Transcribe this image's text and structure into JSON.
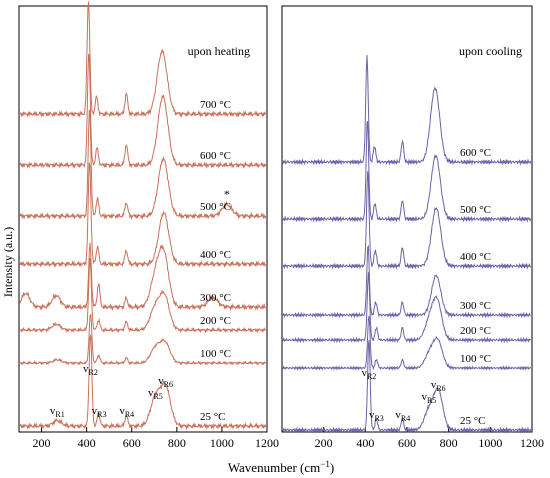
{
  "figure": {
    "ylabel": "Intensity (a.u.)",
    "xlabel": "Wavenumber (cm",
    "xlabel_sup": "−1",
    "xlabel_end": ")"
  },
  "chart_data": [
    {
      "type": "line",
      "title": "upon heating",
      "color": "#c9705a",
      "xlim": [
        100,
        1200
      ],
      "xticks": [
        200,
        400,
        600,
        800,
        1000,
        1200
      ],
      "grid": false,
      "y_scale": "arbitrary, spectra vertically offset",
      "series": [
        {
          "name": "25 °C",
          "peaks": [
            [
              270,
              0.05
            ],
            [
              417,
              0.85
            ],
            [
              453,
              0.12
            ],
            [
              576,
              0.1
            ],
            [
              705,
              0.25
            ],
            [
              750,
              0.35
            ]
          ]
        },
        {
          "name": "100 °C",
          "peaks": [
            [
              270,
              0.05
            ],
            [
              417,
              0.75
            ],
            [
              453,
              0.12
            ],
            [
              576,
              0.08
            ],
            [
              705,
              0.22
            ],
            [
              748,
              0.3
            ]
          ]
        },
        {
          "name": "200 °C",
          "peaks": [
            [
              265,
              0.07
            ],
            [
              415,
              0.85
            ],
            [
              453,
              0.12
            ],
            [
              576,
              0.1
            ],
            [
              703,
              0.25
            ],
            [
              745,
              0.4
            ]
          ]
        },
        {
          "name": "300 °C",
          "peaks": [
            [
              130,
              0.12
            ],
            [
              265,
              0.1
            ],
            [
              415,
              0.55
            ],
            [
              453,
              0.2
            ],
            [
              576,
              0.08
            ],
            [
              705,
              0.25
            ],
            [
              742,
              0.45
            ],
            [
              960,
              0.08
            ]
          ]
        },
        {
          "name": "400 °C",
          "peaks": [
            [
              413,
              0.9
            ],
            [
              448,
              0.15
            ],
            [
              576,
              0.12
            ],
            [
              742,
              0.45
            ]
          ]
        },
        {
          "name": "500 °C",
          "peaks": [
            [
              413,
              0.95
            ],
            [
              448,
              0.15
            ],
            [
              576,
              0.12
            ],
            [
              740,
              0.5
            ],
            [
              1022,
              0.1
            ]
          ]
        },
        {
          "name": "600 °C",
          "peaks": [
            [
              410,
              1.0
            ],
            [
              446,
              0.15
            ],
            [
              576,
              0.18
            ],
            [
              738,
              0.6
            ]
          ]
        },
        {
          "name": "700 °C",
          "peaks": [
            [
              408,
              1.0
            ],
            [
              444,
              0.15
            ],
            [
              576,
              0.18
            ],
            [
              735,
              0.55
            ]
          ]
        }
      ],
      "annotations": [
        {
          "text": "v",
          "sub": "R1",
          "x": 270
        },
        {
          "text": "v",
          "sub": "R2",
          "x": 417
        },
        {
          "text": "v",
          "sub": "R3",
          "x": 455
        },
        {
          "text": "v",
          "sub": "R4",
          "x": 578
        },
        {
          "text": "v",
          "sub": "R5",
          "x": 705
        },
        {
          "text": "v",
          "sub": "R6",
          "x": 750
        },
        {
          "text": "*",
          "x": 1022
        }
      ]
    },
    {
      "type": "line",
      "title": "upon cooling",
      "color": "#6a62a8",
      "xlim": [
        0,
        1200
      ],
      "xticks": [
        200,
        400,
        600,
        800,
        1000,
        1200
      ],
      "grid": false,
      "y_scale": "arbitrary, spectra vertically offset",
      "series": [
        {
          "name": "25 °C",
          "peaks": [
            [
              417,
              0.95
            ],
            [
              453,
              0.12
            ],
            [
              578,
              0.12
            ],
            [
              705,
              0.2
            ],
            [
              750,
              0.4
            ]
          ]
        },
        {
          "name": "100 °C",
          "peaks": [
            [
              417,
              0.75
            ],
            [
              453,
              0.12
            ],
            [
              578,
              0.12
            ],
            [
              708,
              0.2
            ],
            [
              748,
              0.38
            ]
          ]
        },
        {
          "name": "200 °C",
          "peaks": [
            [
              415,
              0.8
            ],
            [
              453,
              0.15
            ],
            [
              578,
              0.15
            ],
            [
              708,
              0.22
            ],
            [
              745,
              0.45
            ]
          ]
        },
        {
          "name": "300 °C",
          "peaks": [
            [
              413,
              0.8
            ],
            [
              450,
              0.15
            ],
            [
              578,
              0.15
            ],
            [
              740,
              0.45
            ]
          ]
        },
        {
          "name": "400 °C",
          "peaks": [
            [
              412,
              0.9
            ],
            [
              448,
              0.15
            ],
            [
              578,
              0.18
            ],
            [
              740,
              0.55
            ]
          ]
        },
        {
          "name": "500 °C",
          "peaks": [
            [
              410,
              0.95
            ],
            [
              446,
              0.15
            ],
            [
              578,
              0.18
            ],
            [
              738,
              0.6
            ]
          ]
        },
        {
          "name": "600 °C",
          "peaks": [
            [
              408,
              1.0
            ],
            [
              444,
              0.15
            ],
            [
              578,
              0.2
            ],
            [
              735,
              0.7
            ]
          ]
        }
      ],
      "annotations": [
        {
          "text": "v",
          "sub": "R2",
          "x": 417
        },
        {
          "text": "v",
          "sub": "R3",
          "x": 453
        },
        {
          "text": "v",
          "sub": "R4",
          "x": 580
        },
        {
          "text": "v",
          "sub": "R5",
          "x": 705
        },
        {
          "text": "v",
          "sub": "R6",
          "x": 750
        }
      ]
    }
  ]
}
